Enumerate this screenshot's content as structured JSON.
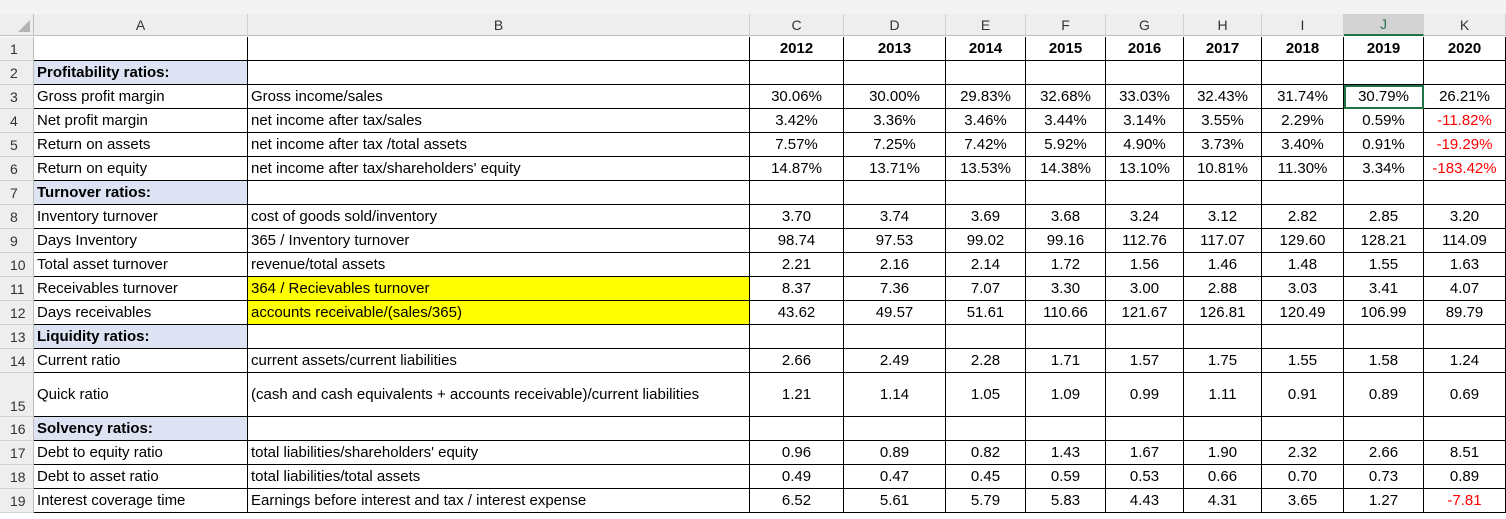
{
  "columns": [
    "A",
    "B",
    "C",
    "D",
    "E",
    "F",
    "G",
    "H",
    "I",
    "J",
    "K"
  ],
  "selected_column": "J",
  "row_numbers": [
    "1",
    "2",
    "3",
    "4",
    "5",
    "6",
    "7",
    "8",
    "9",
    "10",
    "11",
    "12",
    "13",
    "14",
    "15",
    "16",
    "17",
    "18",
    "19"
  ],
  "years": [
    "2012",
    "2013",
    "2014",
    "2015",
    "2016",
    "2017",
    "2018",
    "2019",
    "2020"
  ],
  "rows": [
    {
      "num": "2",
      "label": "Profitability ratios:",
      "section": true
    },
    {
      "num": "3",
      "label": "Gross profit margin",
      "formula": "Gross income/sales",
      "values": [
        "30.06%",
        "30.00%",
        "29.83%",
        "32.68%",
        "33.03%",
        "32.43%",
        "31.74%",
        "30.79%",
        "26.21%"
      ]
    },
    {
      "num": "4",
      "label": "Net profit margin",
      "formula": "net income after tax/sales",
      "values": [
        "3.42%",
        "3.36%",
        "3.46%",
        "3.44%",
        "3.14%",
        "3.55%",
        "2.29%",
        "0.59%",
        "-11.82%"
      ]
    },
    {
      "num": "5",
      "label": "Return on assets",
      "formula": "net income after tax /total assets",
      "values": [
        "7.57%",
        "7.25%",
        "7.42%",
        "5.92%",
        "4.90%",
        "3.73%",
        "3.40%",
        "0.91%",
        "-19.29%"
      ]
    },
    {
      "num": "6",
      "label": "Return on equity",
      "formula": "net income after tax/shareholders' equity",
      "values": [
        "14.87%",
        "13.71%",
        "13.53%",
        "14.38%",
        "13.10%",
        "10.81%",
        "11.30%",
        "3.34%",
        "-183.42%"
      ]
    },
    {
      "num": "7",
      "label": "Turnover ratios:",
      "section": true
    },
    {
      "num": "8",
      "label": "Inventory turnover",
      "formula": "cost of goods sold/inventory",
      "values": [
        "3.70",
        "3.74",
        "3.69",
        "3.68",
        "3.24",
        "3.12",
        "2.82",
        "2.85",
        "3.20"
      ]
    },
    {
      "num": "9",
      "label": "Days Inventory",
      "formula": "365 / Inventory turnover",
      "values": [
        "98.74",
        "97.53",
        "99.02",
        "99.16",
        "112.76",
        "117.07",
        "129.60",
        "128.21",
        "114.09"
      ]
    },
    {
      "num": "10",
      "label": "Total asset turnover",
      "formula": "revenue/total assets",
      "values": [
        "2.21",
        "2.16",
        "2.14",
        "1.72",
        "1.56",
        "1.46",
        "1.48",
        "1.55",
        "1.63"
      ]
    },
    {
      "num": "11",
      "label": "Receivables turnover",
      "formula": "364 / Recievables turnover",
      "highlight": true,
      "values": [
        "8.37",
        "7.36",
        "7.07",
        "3.30",
        "3.00",
        "2.88",
        "3.03",
        "3.41",
        "4.07"
      ]
    },
    {
      "num": "12",
      "label": "Days receivables",
      "formula": "accounts receivable/(sales/365)",
      "highlight": true,
      "values": [
        "43.62",
        "49.57",
        "51.61",
        "110.66",
        "121.67",
        "126.81",
        "120.49",
        "106.99",
        "89.79"
      ]
    },
    {
      "num": "13",
      "label": "Liquidity ratios:",
      "section": true
    },
    {
      "num": "14",
      "label": "Current ratio",
      "formula": "current assets/current liabilities",
      "values": [
        "2.66",
        "2.49",
        "2.28",
        "1.71",
        "1.57",
        "1.75",
        "1.55",
        "1.58",
        "1.24"
      ]
    },
    {
      "num": "15",
      "label": "Quick ratio",
      "formula": "(cash and cash equivalents + accounts receivable)/current liabilities",
      "tall": true,
      "values": [
        "1.21",
        "1.14",
        "1.05",
        "1.09",
        "0.99",
        "1.11",
        "0.91",
        "0.89",
        "0.69"
      ]
    },
    {
      "num": "16",
      "label": "Solvency ratios:",
      "section": true
    },
    {
      "num": "17",
      "label": "Debt to equity ratio",
      "formula": "total liabilities/shareholders' equity",
      "values": [
        "0.96",
        "0.89",
        "0.82",
        "1.43",
        "1.67",
        "1.90",
        "2.32",
        "2.66",
        "8.51"
      ]
    },
    {
      "num": "18",
      "label": "Debt to asset ratio",
      "formula": "total liabilities/total assets",
      "values": [
        "0.49",
        "0.47",
        "0.45",
        "0.59",
        "0.53",
        "0.66",
        "0.70",
        "0.73",
        "0.89"
      ]
    },
    {
      "num": "19",
      "label": "Interest coverage time",
      "formula": "Earnings before interest and tax / interest expense",
      "values": [
        "6.52",
        "5.61",
        "5.79",
        "5.83",
        "4.43",
        "4.31",
        "3.65",
        "1.27",
        "-7.81"
      ]
    }
  ],
  "colors": {
    "section_fill": "#dde3f3",
    "highlight_fill": "#ffff00",
    "negative_text": "#ff0000",
    "selection": "#217346"
  }
}
